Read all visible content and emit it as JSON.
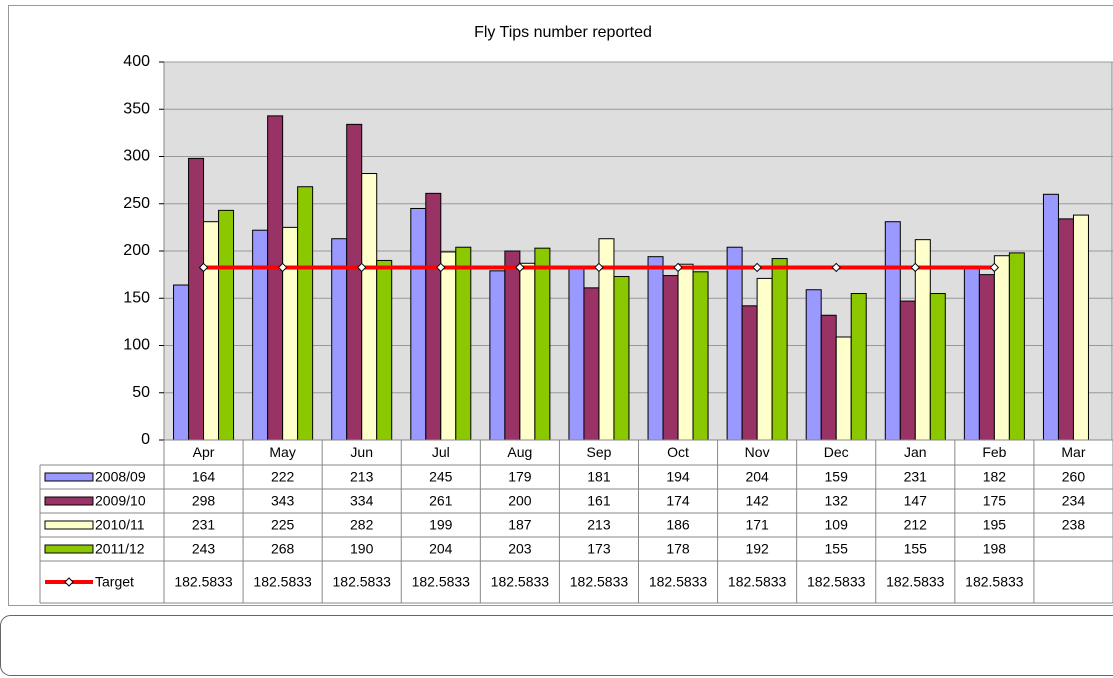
{
  "chart_data": {
    "type": "bar",
    "title": "Fly Tips number reported",
    "categories": [
      "Apr",
      "May",
      "Jun",
      "Jul",
      "Aug",
      "Sep",
      "Oct",
      "Nov",
      "Dec",
      "Jan",
      "Feb",
      "Mar"
    ],
    "ylim": [
      0,
      400
    ],
    "yticks": [
      0,
      50,
      100,
      150,
      200,
      250,
      300,
      350,
      400
    ],
    "grid": true,
    "series": [
      {
        "name": "2008/09",
        "color": "#9999FF",
        "values": [
          164,
          222,
          213,
          245,
          179,
          181,
          194,
          204,
          159,
          231,
          182,
          260
        ]
      },
      {
        "name": "2009/10",
        "color": "#993366",
        "values": [
          298,
          343,
          334,
          261,
          200,
          161,
          174,
          142,
          132,
          147,
          175,
          234
        ]
      },
      {
        "name": "2010/11",
        "color": "#FFFFCC",
        "values": [
          231,
          225,
          282,
          199,
          187,
          213,
          186,
          171,
          109,
          212,
          195,
          238
        ]
      },
      {
        "name": "2011/12",
        "color": "#8CC800",
        "values": [
          243,
          268,
          190,
          204,
          203,
          173,
          178,
          192,
          155,
          155,
          198,
          null
        ]
      },
      {
        "name": "Target",
        "type": "line",
        "color": "#FF0000",
        "values": [
          182.5833,
          182.5833,
          182.5833,
          182.5833,
          182.5833,
          182.5833,
          182.5833,
          182.5833,
          182.5833,
          182.5833,
          182.5833,
          null
        ]
      }
    ]
  }
}
